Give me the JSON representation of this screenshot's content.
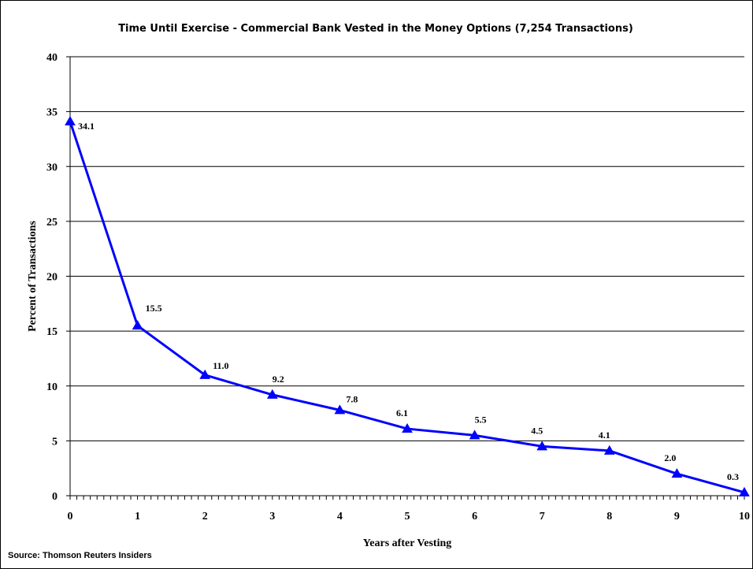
{
  "chart_data": {
    "type": "line",
    "title": "Time Until Exercise - Commercial Bank Vested in the Money Options (7,254 Transactions)",
    "xlabel": "Years after Vesting",
    "ylabel": "Percent of Transactions",
    "x": [
      0,
      1,
      2,
      3,
      4,
      5,
      6,
      7,
      8,
      9,
      10
    ],
    "series": [
      {
        "values": [
          34.1,
          15.5,
          11.0,
          9.2,
          7.8,
          6.1,
          5.5,
          4.5,
          4.1,
          2.0,
          0.3
        ],
        "data_labels": [
          "34.1",
          "15.5",
          "11.0",
          "9.2",
          "7.8",
          "6.1",
          "5.5",
          "4.5",
          "4.1",
          "2.0",
          "0.3"
        ],
        "color": "#0000ff",
        "marker": "triangle"
      }
    ],
    "xlim": [
      0,
      10
    ],
    "ylim": [
      0,
      40
    ],
    "yticks": [
      0,
      5,
      10,
      15,
      20,
      25,
      30,
      35,
      40
    ],
    "xticks": [
      0,
      1,
      2,
      3,
      4,
      5,
      6,
      7,
      8,
      9,
      10
    ],
    "grid": "horizontal",
    "legend": "none"
  },
  "source": "Source: Thomson Reuters Insiders"
}
